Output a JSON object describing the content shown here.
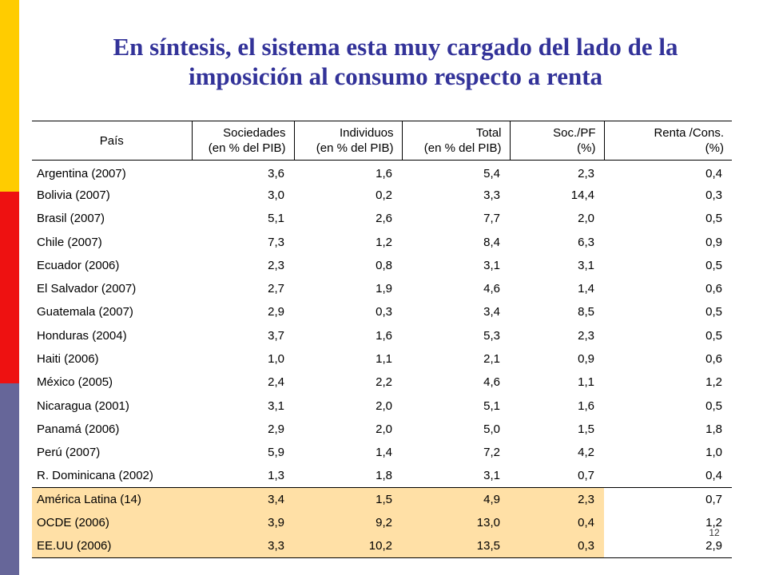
{
  "slide": {
    "title_line1": "En síntesis, el sistema esta muy cargado del lado de la",
    "title_line2": "imposición  al consumo  respecto a  renta",
    "page_number": "12",
    "colors": {
      "bar_yellow": "#ffcc00",
      "bar_red": "#ee1111",
      "bar_blue": "#666699",
      "title": "#333399",
      "highlight": "#ffe0a6"
    }
  },
  "table": {
    "headers": [
      {
        "line1": "País",
        "line2": ""
      },
      {
        "line1": "Sociedades",
        "line2": "(en % del PIB)"
      },
      {
        "line1": "Individuos",
        "line2": "(en % del PIB)"
      },
      {
        "line1": "Total",
        "line2": "(en % del PIB)"
      },
      {
        "line1": "Soc./PF",
        "line2": "(%)"
      },
      {
        "line1": "Renta /Cons.",
        "line2": "(%)"
      }
    ],
    "rows": [
      [
        "Argentina (2007)",
        "3,6",
        "1,6",
        "5,4",
        "2,3",
        "0,4"
      ],
      [
        "Bolivia (2007)",
        "3,0",
        "0,2",
        "3,3",
        "14,4",
        "0,3"
      ],
      [
        "Brasil (2007)",
        "5,1",
        "2,6",
        "7,7",
        "2,0",
        "0,5"
      ],
      [
        "Chile (2007)",
        "7,3",
        "1,2",
        "8,4",
        "6,3",
        "0,9"
      ],
      [
        "Ecuador (2006)",
        "2,3",
        "0,8",
        "3,1",
        "3,1",
        "0,5"
      ],
      [
        "El Salvador (2007)",
        "2,7",
        "1,9",
        "4,6",
        "1,4",
        "0,6"
      ],
      [
        "Guatemala (2007)",
        "2,9",
        "0,3",
        "3,4",
        "8,5",
        "0,5"
      ],
      [
        "Honduras (2004)",
        "3,7",
        "1,6",
        "5,3",
        "2,3",
        "0,5"
      ],
      [
        "Haiti (2006)",
        "1,0",
        "1,1",
        "2,1",
        "0,9",
        "0,6"
      ],
      [
        "México (2005)",
        "2,4",
        "2,2",
        "4,6",
        "1,1",
        "1,2"
      ],
      [
        "Nicaragua (2001)",
        "3,1",
        "2,0",
        "5,1",
        "1,6",
        "0,5"
      ],
      [
        "Panamá (2006)",
        "2,9",
        "2,0",
        "5,0",
        "1,5",
        "1,8"
      ],
      [
        "Perú (2007)",
        "5,9",
        "1,4",
        "7,2",
        "4,2",
        "1,0"
      ],
      [
        "R. Dominicana (2002)",
        "1,3",
        "1,8",
        "3,1",
        "0,7",
        "0,4"
      ]
    ],
    "aggregate_rows": [
      [
        "América Latina (14)",
        "3,4",
        "1,5",
        "4,9",
        "2,3",
        "0,7"
      ],
      [
        "OCDE (2006)",
        "3,9",
        "9,2",
        "13,0",
        "0,4",
        "1,2"
      ],
      [
        "EE.UU (2006)",
        "3,3",
        "10,2",
        "13,5",
        "0,3",
        "2,9"
      ]
    ]
  }
}
